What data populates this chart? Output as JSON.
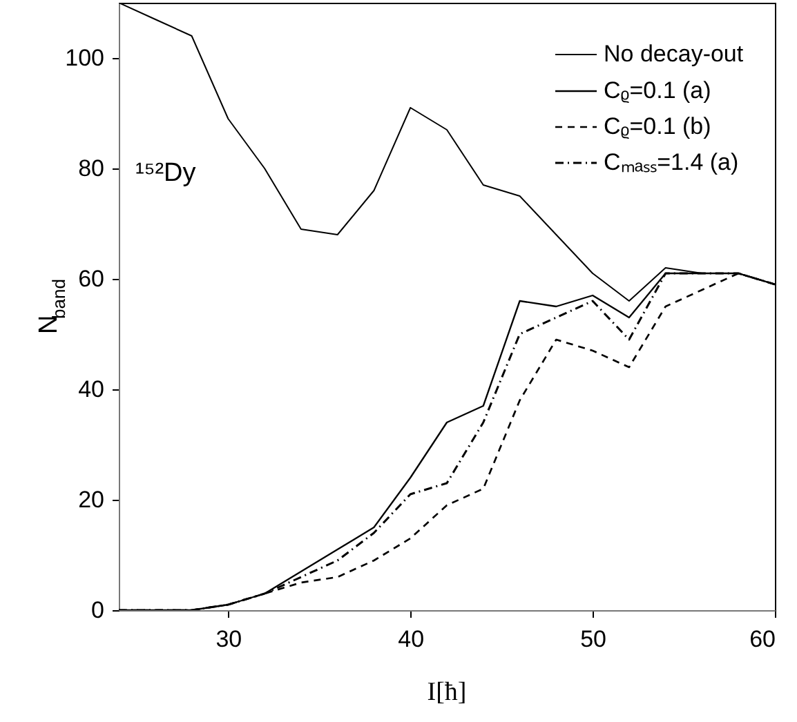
{
  "chart_data": {
    "type": "line",
    "xlabel": "I[ħ]",
    "ylabel": "N$_{band}$",
    "x": [
      24,
      26,
      28,
      30,
      32,
      34,
      36,
      38,
      40,
      42,
      44,
      46,
      48,
      50,
      52,
      54,
      56,
      58,
      60
    ],
    "series": [
      {
        "name": "No decay-out",
        "color": "#000000",
        "line_style": "solid",
        "values": [
          110,
          107,
          104,
          89,
          80,
          69,
          68,
          76,
          91,
          87,
          77,
          75,
          68,
          61,
          56,
          62,
          61,
          61,
          59
        ]
      },
      {
        "name": "Cᵨ=0.1 (a)",
        "color": "#000000",
        "line_style": "solid",
        "values": [
          0,
          0,
          0,
          1,
          3,
          7,
          11,
          15,
          24,
          34,
          37,
          56,
          55,
          57,
          53,
          61,
          61,
          61,
          59
        ]
      },
      {
        "name": "Cᵨ=0.1 (b)",
        "color": "#000000",
        "line_style": "dashed",
        "values": [
          0,
          0,
          0,
          1,
          3,
          5,
          6,
          9,
          13,
          19,
          22,
          38,
          49,
          47,
          44,
          55,
          58,
          61,
          59
        ]
      },
      {
        "name": "Cₘₐₛₛ=1.4 (a)",
        "color": "#000000",
        "line_style": "dashdot",
        "values": [
          0,
          0,
          0,
          1,
          3,
          6,
          9,
          14,
          21,
          23,
          34,
          50,
          53,
          56,
          49,
          61,
          61,
          61,
          59
        ]
      }
    ],
    "xlim": [
      24,
      60
    ],
    "xticks": [
      30,
      40,
      50,
      60
    ],
    "ylim": [
      0,
      110
    ],
    "yticks": [
      0,
      20,
      40,
      60,
      80,
      100
    ],
    "annotations": [
      "¹⁵²Dy"
    ],
    "grid": false,
    "legend": "top right",
    "marker": "none"
  }
}
